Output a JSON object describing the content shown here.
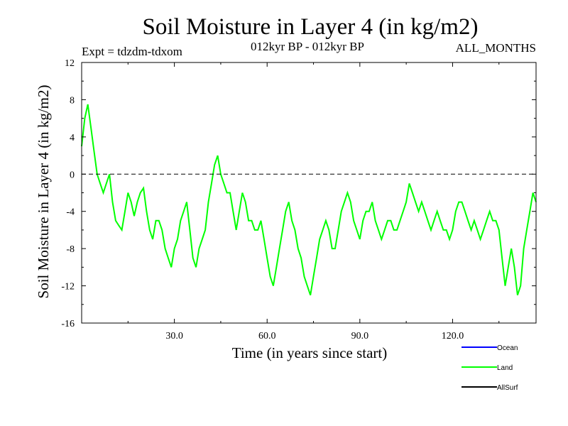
{
  "chart_data": {
    "type": "line",
    "title": "Soil Moisture in Layer 4 (in kg/m2)",
    "subtitle_left": "Expt = tdzdm-tdxom",
    "subtitle_center": "012kyr BP - 012kyr BP",
    "subtitle_right": "ALL_MONTHS",
    "xlabel": "Time (in years since start)",
    "ylabel": "Soil Moisture in Layer 4 (in kg/m2)",
    "xlim": [
      0,
      147
    ],
    "ylim": [
      -16,
      12
    ],
    "x_ticks": [
      30,
      60,
      90,
      120
    ],
    "x_tick_labels": [
      "30.0",
      "60.0",
      "90.0",
      "120.0"
    ],
    "y_ticks": [
      -16,
      -12,
      -8,
      -4,
      0,
      4,
      8,
      12
    ],
    "y_tick_labels": [
      "-16",
      "-12",
      "-8",
      "-4",
      "0",
      "4",
      "8",
      "12"
    ],
    "reference_line": 0,
    "legend": [
      {
        "name": "Ocean",
        "color": "#0000ff"
      },
      {
        "name": "Land",
        "color": "#00ff00"
      },
      {
        "name": "AllSurf",
        "color": "#000000"
      }
    ],
    "series": [
      {
        "name": "Land",
        "color": "#00ff00",
        "x": [
          0,
          1,
          2,
          3,
          4,
          5,
          6,
          7,
          8,
          9,
          10,
          11,
          12,
          13,
          14,
          15,
          16,
          17,
          18,
          19,
          20,
          21,
          22,
          23,
          24,
          25,
          26,
          27,
          28,
          29,
          30,
          31,
          32,
          33,
          34,
          35,
          36,
          37,
          38,
          39,
          40,
          41,
          42,
          43,
          44,
          45,
          46,
          47,
          48,
          49,
          50,
          51,
          52,
          53,
          54,
          55,
          56,
          57,
          58,
          59,
          60,
          61,
          62,
          63,
          64,
          65,
          66,
          67,
          68,
          69,
          70,
          71,
          72,
          73,
          74,
          75,
          76,
          77,
          78,
          79,
          80,
          81,
          82,
          83,
          84,
          85,
          86,
          87,
          88,
          89,
          90,
          91,
          92,
          93,
          94,
          95,
          96,
          97,
          98,
          99,
          100,
          101,
          102,
          103,
          104,
          105,
          106,
          107,
          108,
          109,
          110,
          111,
          112,
          113,
          114,
          115,
          116,
          117,
          118,
          119,
          120,
          121,
          122,
          123,
          124,
          125,
          126,
          127,
          128,
          129,
          130,
          131,
          132,
          133,
          134,
          135,
          136,
          137,
          138,
          139,
          140,
          141,
          142,
          143,
          144,
          145,
          146,
          147
        ],
        "values": [
          3,
          6,
          7.5,
          5,
          2.5,
          0,
          -1,
          -2,
          -1,
          0,
          -3,
          -5,
          -5.5,
          -6,
          -4,
          -2,
          -3,
          -4.5,
          -3,
          -2,
          -1.5,
          -4,
          -6,
          -7,
          -5,
          -5,
          -6,
          -8,
          -9,
          -10,
          -8,
          -7,
          -5,
          -4,
          -3,
          -6,
          -9,
          -10,
          -8,
          -7,
          -6,
          -3,
          -1,
          1,
          2,
          0,
          -1,
          -2,
          -2,
          -4,
          -6,
          -4,
          -2,
          -3,
          -5,
          -5,
          -6,
          -6,
          -5,
          -7,
          -9,
          -11,
          -12,
          -10,
          -8,
          -6,
          -4,
          -3,
          -5,
          -6,
          -8,
          -9,
          -11,
          -12,
          -13,
          -11,
          -9,
          -7,
          -6,
          -5,
          -6,
          -8,
          -8,
          -6,
          -4,
          -3,
          -2,
          -3,
          -5,
          -6,
          -7,
          -5,
          -4,
          -4,
          -3,
          -5,
          -6,
          -7,
          -6,
          -5,
          -5,
          -6,
          -6,
          -5,
          -4,
          -3,
          -1,
          -2,
          -3,
          -4,
          -3,
          -4,
          -5,
          -6,
          -5,
          -4,
          -5,
          -6,
          -6,
          -7,
          -6,
          -4,
          -3,
          -3,
          -4,
          -5,
          -6,
          -5,
          -6,
          -7,
          -6,
          -5,
          -4,
          -5,
          -5,
          -6,
          -9,
          -12,
          -10,
          -8,
          -10,
          -13,
          -12,
          -8,
          -6,
          -4,
          -2,
          -3
        ]
      }
    ]
  }
}
